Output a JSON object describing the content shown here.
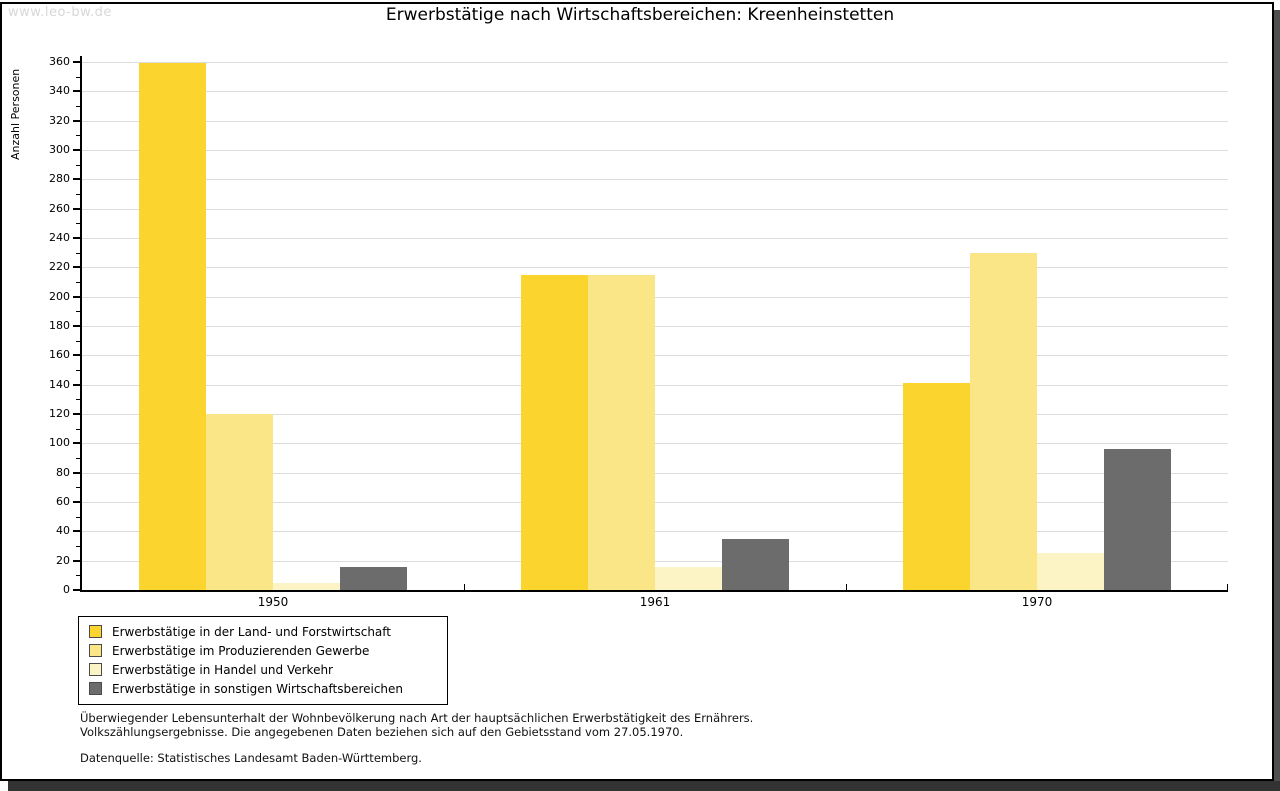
{
  "watermark": "www.leo-bw.de",
  "header": {
    "title": "Erwerbstätige nach Wirtschaftsbereichen: Kreenheinstetten"
  },
  "chart_data": {
    "type": "bar",
    "title": "Erwerbstätige nach Wirtschaftsbereichen: Kreenheinstetten",
    "xlabel": "",
    "ylabel": "Anzahl Personen",
    "categories": [
      "1950",
      "1961",
      "1970"
    ],
    "series": [
      {
        "name": "Erwerbstätige in der Land- und Forstwirtschaft",
        "color": "#fbd42d",
        "values": [
          359,
          215,
          141
        ]
      },
      {
        "name": "Erwerbstätige im Produzierenden Gewerbe",
        "color": "#fbe687",
        "values": [
          120,
          215,
          230
        ]
      },
      {
        "name": "Erwerbstätige in Handel und Verkehr",
        "color": "#fcf4c5",
        "values": [
          5,
          16,
          25
        ]
      },
      {
        "name": "Erwerbstätige in sonstigen Wirtschaftsbereichen",
        "color": "#6c6c6c",
        "values": [
          16,
          35,
          96
        ]
      }
    ],
    "ylim": [
      0,
      360
    ],
    "y_major_step": 20,
    "y_minor_step": 10,
    "grid": "horizontal-major",
    "legend_position": "bottom-left"
  },
  "footnotes": {
    "line1": "Überwiegender Lebensunterhalt der Wohnbevölkerung nach Art der hauptsächlichen Erwerbstätigkeit des Ernährers.",
    "line2": "Volkszählungsergebnisse. Die angegebenen Daten beziehen sich auf den Gebietsstand vom 27.05.1970.",
    "source": "Datenquelle: Statistisches Landesamt Baden-Württemberg."
  },
  "colors": {
    "gridline": "#dcdcdc",
    "axis": "#000000",
    "watermark": "#d8d8d8",
    "frame_border": "#000000",
    "shadow": "#4f4f4f"
  }
}
